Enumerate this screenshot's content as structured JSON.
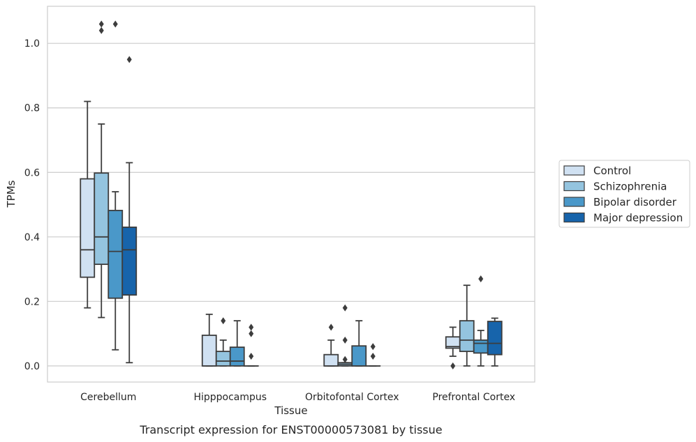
{
  "caption": "Transcript expression for ENST00000573081 by tissue",
  "chart_data": {
    "type": "box",
    "xlabel": "Tissue",
    "ylabel": "TPMs",
    "ylim": [
      -0.05,
      1.115
    ],
    "yticks": [
      0.0,
      0.2,
      0.4,
      0.6,
      0.8,
      1.0
    ],
    "ytick_labels": [
      "0.0",
      "0.2",
      "0.4",
      "0.6",
      "0.8",
      "1.0"
    ],
    "grid": "horizontal",
    "legend_position": "right",
    "categories": [
      "Cerebellum",
      "Hipppocampus",
      "Orbitofontal Cortex",
      "Prefrontal Cortex"
    ],
    "series": [
      {
        "name": "Control",
        "color": "#d0e1f2",
        "boxes": [
          {
            "whislo": 0.18,
            "q1": 0.275,
            "med": 0.36,
            "q3": 0.58,
            "whishi": 0.82,
            "fliers": []
          },
          {
            "whislo": 0.0,
            "q1": 0.0,
            "med": 0.0,
            "q3": 0.095,
            "whishi": 0.16,
            "fliers": []
          },
          {
            "whislo": 0.0,
            "q1": 0.0,
            "med": 0.0,
            "q3": 0.035,
            "whishi": 0.08,
            "fliers": [
              0.12
            ]
          },
          {
            "whislo": 0.03,
            "q1": 0.055,
            "med": 0.06,
            "q3": 0.09,
            "whishi": 0.12,
            "fliers": [
              0.0
            ]
          }
        ]
      },
      {
        "name": "Schizophrenia",
        "color": "#94c4df",
        "boxes": [
          {
            "whislo": 0.15,
            "q1": 0.315,
            "med": 0.4,
            "q3": 0.598,
            "whishi": 0.75,
            "fliers": [
              1.04,
              1.06
            ]
          },
          {
            "whislo": 0.0,
            "q1": 0.0,
            "med": 0.015,
            "q3": 0.045,
            "whishi": 0.08,
            "fliers": [
              0.14
            ]
          },
          {
            "whislo": 0.0,
            "q1": 0.0,
            "med": 0.005,
            "q3": 0.01,
            "whishi": 0.01,
            "fliers": [
              0.02,
              0.08,
              0.18
            ]
          },
          {
            "whislo": 0.0,
            "q1": 0.045,
            "med": 0.08,
            "q3": 0.14,
            "whishi": 0.25,
            "fliers": []
          }
        ]
      },
      {
        "name": "Bipolar disorder",
        "color": "#4a98c9",
        "boxes": [
          {
            "whislo": 0.05,
            "q1": 0.21,
            "med": 0.355,
            "q3": 0.482,
            "whishi": 0.54,
            "fliers": [
              1.06
            ]
          },
          {
            "whislo": 0.0,
            "q1": 0.0,
            "med": 0.015,
            "q3": 0.058,
            "whishi": 0.14,
            "fliers": []
          },
          {
            "whislo": 0.0,
            "q1": 0.0,
            "med": 0.0,
            "q3": 0.062,
            "whishi": 0.14,
            "fliers": []
          },
          {
            "whislo": 0.0,
            "q1": 0.04,
            "med": 0.07,
            "q3": 0.08,
            "whishi": 0.11,
            "fliers": [
              0.27
            ]
          }
        ]
      },
      {
        "name": "Major depression",
        "color": "#1764ab",
        "boxes": [
          {
            "whislo": 0.01,
            "q1": 0.22,
            "med": 0.36,
            "q3": 0.43,
            "whishi": 0.63,
            "fliers": [
              0.95
            ]
          },
          {
            "whislo": 0.0,
            "q1": 0.0,
            "med": 0.0,
            "q3": 0.0,
            "whishi": 0.0,
            "fliers": [
              0.03,
              0.1,
              0.12
            ]
          },
          {
            "whislo": 0.0,
            "q1": 0.0,
            "med": 0.0,
            "q3": 0.0,
            "whishi": 0.0,
            "fliers": [
              0.03,
              0.06
            ]
          },
          {
            "whislo": 0.0,
            "q1": 0.035,
            "med": 0.07,
            "q3": 0.138,
            "whishi": 0.148,
            "fliers": []
          }
        ]
      }
    ]
  }
}
